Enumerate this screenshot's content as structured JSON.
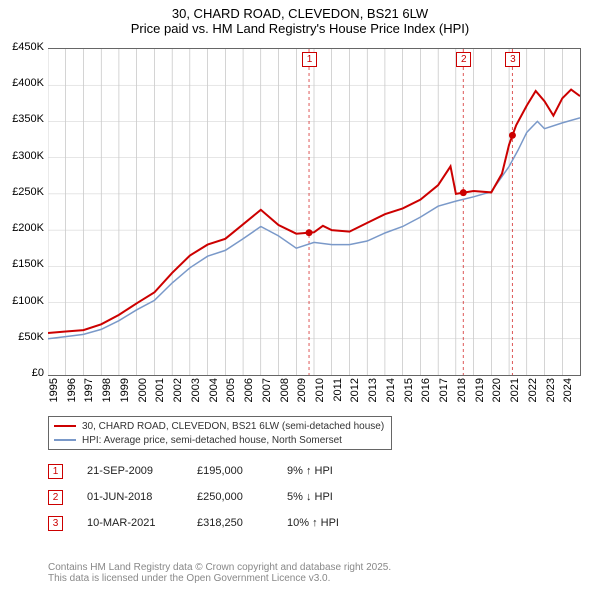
{
  "title": {
    "line1": "30, CHARD ROAD, CLEVEDON, BS21 6LW",
    "line2": "Price paid vs. HM Land Registry's House Price Index (HPI)",
    "fontsize": 13
  },
  "chart": {
    "type": "line",
    "background_color": "#ffffff",
    "grid_color": "#cccccc",
    "ylim": [
      0,
      450
    ],
    "ytick_step": 50,
    "y_prefix": "£",
    "y_suffix": "K",
    "y_fontsize": 11,
    "x_years": [
      1995,
      1996,
      1997,
      1998,
      1999,
      2000,
      2001,
      2002,
      2003,
      2004,
      2005,
      2006,
      2007,
      2008,
      2009,
      2010,
      2011,
      2012,
      2013,
      2014,
      2015,
      2016,
      2017,
      2018,
      2019,
      2020,
      2021,
      2022,
      2023,
      2024
    ],
    "x_range": [
      1995,
      2025
    ],
    "x_fontsize": 11,
    "series": [
      {
        "name": "price_paid",
        "label": "30, CHARD ROAD, CLEVEDON, BS21 6LW (semi-detached house)",
        "color": "#cc0000",
        "line_width": 2,
        "points": [
          [
            1995,
            58
          ],
          [
            1996,
            60
          ],
          [
            1997,
            62
          ],
          [
            1998,
            70
          ],
          [
            1999,
            83
          ],
          [
            2000,
            99
          ],
          [
            2001,
            114
          ],
          [
            2002,
            141
          ],
          [
            2003,
            165
          ],
          [
            2004,
            180
          ],
          [
            2005,
            188
          ],
          [
            2006,
            208
          ],
          [
            2007,
            228
          ],
          [
            2008,
            207
          ],
          [
            2009,
            195
          ],
          [
            2010,
            197
          ],
          [
            2010.5,
            206
          ],
          [
            2011,
            200
          ],
          [
            2012,
            198
          ],
          [
            2013,
            210
          ],
          [
            2014,
            222
          ],
          [
            2015,
            230
          ],
          [
            2016,
            242
          ],
          [
            2017,
            262
          ],
          [
            2017.7,
            288
          ],
          [
            2018,
            250
          ],
          [
            2019,
            254
          ],
          [
            2020,
            252
          ],
          [
            2020.6,
            278
          ],
          [
            2021,
            318
          ],
          [
            2021.4,
            345
          ],
          [
            2022,
            372
          ],
          [
            2022.5,
            392
          ],
          [
            2023,
            378
          ],
          [
            2023.5,
            358
          ],
          [
            2024,
            382
          ],
          [
            2024.5,
            394
          ],
          [
            2025,
            385
          ]
        ]
      },
      {
        "name": "hpi",
        "label": "HPI: Average price, semi-detached house, North Somerset",
        "color": "#7a99c9",
        "line_width": 1.5,
        "points": [
          [
            1995,
            50
          ],
          [
            1996,
            53
          ],
          [
            1997,
            56
          ],
          [
            1998,
            63
          ],
          [
            1999,
            75
          ],
          [
            2000,
            90
          ],
          [
            2001,
            103
          ],
          [
            2002,
            127
          ],
          [
            2003,
            148
          ],
          [
            2004,
            164
          ],
          [
            2005,
            172
          ],
          [
            2006,
            188
          ],
          [
            2007,
            205
          ],
          [
            2008,
            192
          ],
          [
            2009,
            175
          ],
          [
            2010,
            183
          ],
          [
            2011,
            180
          ],
          [
            2012,
            180
          ],
          [
            2013,
            185
          ],
          [
            2014,
            196
          ],
          [
            2015,
            205
          ],
          [
            2016,
            218
          ],
          [
            2017,
            233
          ],
          [
            2018,
            240
          ],
          [
            2019,
            246
          ],
          [
            2020,
            253
          ],
          [
            2021,
            288
          ],
          [
            2021.5,
            310
          ],
          [
            2022,
            335
          ],
          [
            2022.6,
            350
          ],
          [
            2023,
            340
          ],
          [
            2024,
            348
          ],
          [
            2025,
            355
          ]
        ]
      }
    ],
    "markers": [
      {
        "id": "1",
        "x": 2009.72,
        "date": "21-SEP-2009",
        "price": "£195,000",
        "note": "9% ↑ HPI"
      },
      {
        "id": "2",
        "x": 2018.42,
        "date": "01-JUN-2018",
        "price": "£250,000",
        "note": "5% ↓ HPI"
      },
      {
        "id": "3",
        "x": 2021.19,
        "date": "10-MAR-2021",
        "price": "£318,250",
        "note": "10% ↑ HPI"
      }
    ],
    "marker_color": "#cc0000"
  },
  "footer": {
    "line1": "Contains HM Land Registry data © Crown copyright and database right 2025.",
    "line2": "This data is licensed under the Open Government Licence v3.0."
  }
}
